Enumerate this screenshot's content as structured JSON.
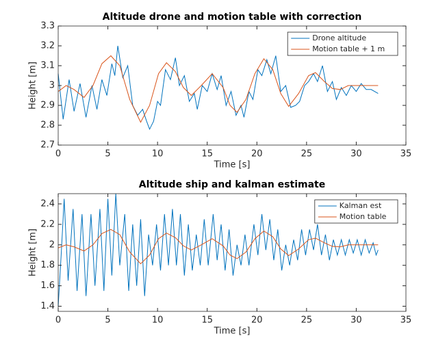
{
  "chart_data": [
    {
      "type": "line",
      "title": "Altitude drone and motion table with correction",
      "x_label": "Time [s]",
      "y_label": "Height [m]",
      "xlim": [
        0,
        35
      ],
      "xticks": [
        0,
        5,
        10,
        15,
        20,
        25,
        30,
        35
      ],
      "ylim": [
        2.7,
        3.3
      ],
      "yticks": [
        2.7,
        2.8,
        2.9,
        3,
        3.1,
        3.2,
        3.3
      ],
      "legend": "upper right",
      "series": [
        {
          "name": "Drone altitude",
          "color": "#0072bd",
          "x": [
            0,
            0.5,
            1.1,
            1.6,
            2.2,
            2.8,
            3.4,
            3.9,
            4.4,
            4.9,
            5.4,
            5.7,
            6.0,
            6.5,
            7.0,
            7.5,
            8.0,
            8.5,
            8.9,
            9.2,
            9.6,
            10.0,
            10.3,
            10.8,
            11.3,
            11.8,
            12.2,
            12.7,
            13.2,
            13.7,
            14.0,
            14.5,
            15.0,
            15.5,
            16.0,
            16.4,
            16.9,
            17.4,
            17.9,
            18.4,
            18.7,
            19.2,
            19.6,
            20.1,
            20.5,
            21.0,
            21.4,
            21.9,
            22.4,
            22.9,
            23.4,
            23.9,
            24.3,
            24.8,
            25.2,
            25.7,
            26.1,
            26.6,
            27.1,
            27.6,
            28.0,
            28.5,
            29.0,
            29.5,
            30.0,
            30.5,
            31.0,
            31.5,
            32.2
          ],
          "values": [
            3.06,
            2.83,
            3.03,
            2.87,
            3.01,
            2.84,
            3.0,
            2.88,
            3.03,
            2.95,
            3.11,
            3.05,
            3.2,
            3.04,
            3.1,
            2.9,
            2.85,
            2.88,
            2.82,
            2.78,
            2.82,
            2.92,
            2.9,
            3.08,
            3.03,
            3.14,
            3.0,
            3.05,
            2.92,
            2.96,
            2.88,
            3.0,
            2.97,
            3.06,
            2.98,
            3.05,
            2.9,
            2.97,
            2.85,
            2.9,
            2.84,
            2.97,
            2.93,
            3.08,
            3.05,
            3.13,
            3.06,
            3.15,
            2.97,
            3.0,
            2.89,
            2.9,
            2.92,
            3.0,
            3.02,
            3.06,
            3.02,
            3.1,
            2.97,
            3.02,
            2.93,
            2.99,
            2.95,
            3.0,
            2.97,
            3.01,
            2.98,
            2.98,
            2.96
          ]
        },
        {
          "name": "Motion table + 1 m",
          "color": "#d95319",
          "x": [
            0,
            0.8,
            1.6,
            2.6,
            3.5,
            4.4,
            5.3,
            6.2,
            7.2,
            8.3,
            9.2,
            10.1,
            10.9,
            11.8,
            12.6,
            13.4,
            14.4,
            15.5,
            16.6,
            17.3,
            18.0,
            18.9,
            19.8,
            20.7,
            21.6,
            22.4,
            23.2,
            24.2,
            25.2,
            25.9,
            26.8,
            27.6,
            28.4,
            29.2,
            32.2
          ],
          "values": [
            2.97,
            3.0,
            2.98,
            2.94,
            3.0,
            3.11,
            3.15,
            3.1,
            2.93,
            2.815,
            2.9,
            3.06,
            3.115,
            3.07,
            2.99,
            2.95,
            3.0,
            3.06,
            2.99,
            2.9,
            2.865,
            2.93,
            3.06,
            3.135,
            3.08,
            2.96,
            2.895,
            2.96,
            3.05,
            3.065,
            3.02,
            2.985,
            2.98,
            3.0,
            3.0
          ]
        }
      ]
    },
    {
      "type": "line",
      "title": "Altitude ship and kalman estimate",
      "x_label": "Time [s]",
      "y_label": "Height [m]",
      "xlim": [
        0,
        35
      ],
      "xticks": [
        0,
        5,
        10,
        15,
        20,
        25,
        30,
        35
      ],
      "ylim": [
        1.35,
        2.5
      ],
      "yticks": [
        1.4,
        1.6,
        1.8,
        2,
        2.2,
        2.4
      ],
      "legend": "upper right",
      "series": [
        {
          "name": "Kalman est",
          "color": "#0072bd",
          "x": [
            0,
            0.3,
            0.6,
            1.0,
            1.5,
            1.9,
            2.4,
            2.8,
            3.3,
            3.7,
            4.2,
            4.6,
            5.0,
            5.4,
            5.8,
            6.2,
            6.7,
            7.1,
            7.5,
            7.9,
            8.3,
            8.7,
            9.1,
            9.5,
            9.9,
            10.3,
            10.7,
            11.1,
            11.5,
            11.9,
            12.3,
            12.7,
            13.1,
            13.5,
            13.9,
            14.3,
            14.7,
            15.1,
            15.6,
            16.0,
            16.4,
            16.8,
            17.2,
            17.6,
            18.0,
            18.4,
            18.8,
            19.2,
            19.7,
            20.1,
            20.5,
            20.9,
            21.3,
            21.7,
            22.1,
            22.5,
            22.9,
            23.3,
            23.7,
            24.1,
            24.5,
            24.9,
            25.3,
            25.7,
            26.1,
            26.5,
            26.9,
            27.3,
            27.7,
            28.1,
            28.5,
            28.9,
            29.3,
            29.7,
            30.1,
            30.5,
            30.9,
            31.3,
            31.7,
            32.0,
            32.2
          ],
          "values": [
            1.4,
            1.9,
            2.45,
            1.65,
            2.35,
            1.55,
            2.3,
            1.5,
            2.3,
            1.6,
            2.35,
            1.55,
            2.45,
            1.7,
            2.5,
            1.8,
            2.3,
            1.55,
            2.2,
            1.6,
            2.25,
            1.5,
            2.1,
            1.8,
            2.2,
            1.75,
            2.3,
            1.8,
            2.35,
            1.8,
            2.3,
            1.7,
            2.2,
            1.75,
            2.1,
            1.8,
            2.25,
            1.8,
            2.3,
            1.85,
            2.2,
            1.75,
            2.15,
            1.7,
            2.0,
            1.8,
            2.1,
            1.8,
            2.2,
            1.9,
            2.3,
            1.95,
            2.25,
            1.85,
            2.15,
            1.75,
            2.0,
            1.8,
            2.05,
            1.85,
            2.15,
            1.9,
            2.15,
            1.95,
            2.2,
            1.9,
            2.1,
            1.85,
            2.05,
            1.9,
            2.05,
            1.9,
            2.05,
            1.92,
            2.05,
            1.9,
            2.05,
            1.92,
            2.02,
            1.9,
            1.95
          ]
        },
        {
          "name": "Motion table",
          "color": "#d95319",
          "x": [
            0,
            0.8,
            1.6,
            2.6,
            3.5,
            4.4,
            5.3,
            6.2,
            7.2,
            8.3,
            9.2,
            10.1,
            10.9,
            11.8,
            12.6,
            13.4,
            14.4,
            15.5,
            16.6,
            17.3,
            18.0,
            18.9,
            19.8,
            20.7,
            21.6,
            22.4,
            23.2,
            24.2,
            25.2,
            25.9,
            26.8,
            27.6,
            28.4,
            29.2,
            32.2
          ],
          "values": [
            1.97,
            2.0,
            1.98,
            1.94,
            2.0,
            2.11,
            2.15,
            2.1,
            1.93,
            1.815,
            1.9,
            2.06,
            2.115,
            2.07,
            1.99,
            1.95,
            2.0,
            2.06,
            1.99,
            1.9,
            1.865,
            1.93,
            2.06,
            2.135,
            2.08,
            1.96,
            1.895,
            1.96,
            2.05,
            2.065,
            2.02,
            1.985,
            1.98,
            2.0,
            2.0
          ]
        }
      ]
    }
  ]
}
